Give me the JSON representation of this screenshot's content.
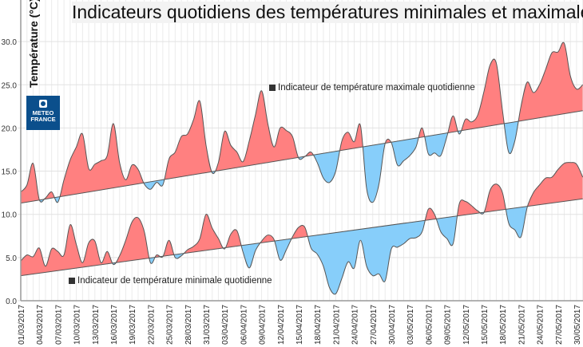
{
  "chart_data": {
    "type": "area",
    "title": "Indicateurs quotidiens des températures minimales et maximales",
    "ylabel": "Température (°C)",
    "xlabel": "",
    "ylim": [
      0,
      33
    ],
    "yticks": [
      "0.0",
      "5.0",
      "10.0",
      "15.0",
      "20.0",
      "25.0",
      "30.0"
    ],
    "grid": true,
    "xtick_labels": [
      "01/03/2017",
      "04/03/2017",
      "07/03/2017",
      "10/03/2017",
      "13/03/2017",
      "16/03/2017",
      "19/03/2017",
      "22/03/2017",
      "25/03/2017",
      "28/03/2017",
      "31/03/2017",
      "03/04/2017",
      "06/04/2017",
      "09/04/2017",
      "12/04/2017",
      "15/04/2017",
      "18/04/2017",
      "21/04/2017",
      "24/04/2017",
      "27/04/2017",
      "30/04/2017",
      "03/05/2017",
      "06/05/2017",
      "09/05/2017",
      "12/05/2017",
      "15/05/2017",
      "18/05/2017",
      "21/05/2017",
      "24/05/2017",
      "27/05/2017",
      "30/05/2017"
    ],
    "x": [
      "01/03",
      "02/03",
      "03/03",
      "04/03",
      "05/03",
      "06/03",
      "07/03",
      "08/03",
      "09/03",
      "10/03",
      "11/03",
      "12/03",
      "13/03",
      "14/03",
      "15/03",
      "16/03",
      "17/03",
      "18/03",
      "19/03",
      "20/03",
      "21/03",
      "22/03",
      "23/03",
      "24/03",
      "25/03",
      "26/03",
      "27/03",
      "28/03",
      "29/03",
      "30/03",
      "31/03",
      "01/04",
      "02/04",
      "03/04",
      "04/04",
      "05/04",
      "06/04",
      "07/04",
      "08/04",
      "09/04",
      "10/04",
      "11/04",
      "12/04",
      "13/04",
      "14/04",
      "15/04",
      "16/04",
      "17/04",
      "18/04",
      "19/04",
      "20/04",
      "21/04",
      "22/04",
      "23/04",
      "24/04",
      "25/04",
      "26/04",
      "27/04",
      "28/04",
      "29/04",
      "30/04",
      "01/05",
      "02/05",
      "03/05",
      "04/05",
      "05/05",
      "06/05",
      "07/05",
      "08/05",
      "09/05",
      "10/05",
      "11/05",
      "12/05",
      "13/05",
      "14/05",
      "15/05",
      "16/05",
      "17/05",
      "18/05",
      "19/05",
      "20/05",
      "21/05",
      "22/05",
      "23/05",
      "24/05",
      "25/05",
      "26/05",
      "27/05",
      "28/05",
      "29/05",
      "30/05",
      "31/05"
    ],
    "colors": {
      "above": "#ff8080",
      "below": "#87cefa",
      "line": "#555555"
    },
    "series": [
      {
        "name": "Indicateur de température maximale quotidienne",
        "values": [
          12.6,
          13.4,
          15.9,
          11.7,
          11.9,
          12.6,
          11.4,
          14.0,
          16.3,
          17.8,
          19.3,
          15.3,
          15.8,
          16.2,
          16.8,
          20.5,
          16.0,
          14.0,
          15.7,
          15.2,
          13.5,
          12.9,
          13.7,
          13.4,
          16.4,
          17.2,
          19.0,
          19.3,
          21.0,
          23.1,
          18.0,
          14.8,
          16.0,
          19.6,
          18.0,
          17.2,
          16.1,
          18.5,
          21.5,
          24.3,
          20.5,
          17.8,
          20.0,
          19.7,
          19.0,
          16.5,
          16.7,
          17.2,
          16.0,
          14.2,
          13.7,
          15.0,
          18.5,
          19.5,
          18.4,
          20.3,
          13.0,
          11.4,
          13.5,
          18.2,
          18.3,
          15.7,
          16.2,
          16.8,
          17.8,
          20.0,
          17.0,
          17.1,
          16.8,
          19.0,
          21.4,
          19.3,
          21.0,
          20.7,
          21.5,
          24.2,
          27.3,
          27.5,
          22.0,
          17.2,
          18.5,
          22.5,
          25.3,
          24.1,
          25.0,
          26.8,
          28.7,
          28.8,
          29.8,
          26.0,
          24.5,
          25.0
        ],
        "normal": [
          11.3,
          22.0
        ]
      },
      {
        "name": "Indicateur de température minimale quotidienne",
        "values": [
          4.6,
          5.3,
          5.1,
          6.1,
          4.0,
          6.0,
          5.7,
          5.3,
          8.8,
          6.5,
          4.4,
          6.7,
          6.9,
          4.4,
          5.7,
          4.2,
          5.2,
          7.0,
          9.1,
          9.6,
          8.0,
          4.4,
          5.3,
          5.1,
          7.0,
          5.0,
          5.2,
          5.9,
          6.3,
          7.2,
          10.0,
          8.4,
          7.2,
          6.0,
          7.7,
          8.1,
          5.6,
          3.8,
          5.8,
          6.9,
          7.6,
          7.1,
          4.7,
          5.9,
          7.4,
          8.5,
          8.5,
          6.1,
          5.4,
          4.0,
          1.5,
          0.8,
          2.6,
          4.5,
          3.8,
          7.0,
          4.0,
          2.9,
          3.1,
          2.3,
          6.0,
          6.2,
          6.6,
          7.2,
          7.3,
          8.0,
          10.6,
          10.0,
          8.0,
          7.2,
          6.6,
          11.2,
          11.5,
          11.0,
          10.4,
          10.2,
          12.8,
          13.5,
          12.5,
          9.0,
          8.2,
          7.4,
          10.8,
          12.5,
          13.4,
          14.2,
          14.3,
          15.2,
          15.9,
          16.0,
          15.8,
          14.3
        ],
        "normal": [
          2.9,
          11.8
        ]
      }
    ]
  },
  "logo": {
    "line1": "METEO",
    "line2": "FRANCE"
  }
}
